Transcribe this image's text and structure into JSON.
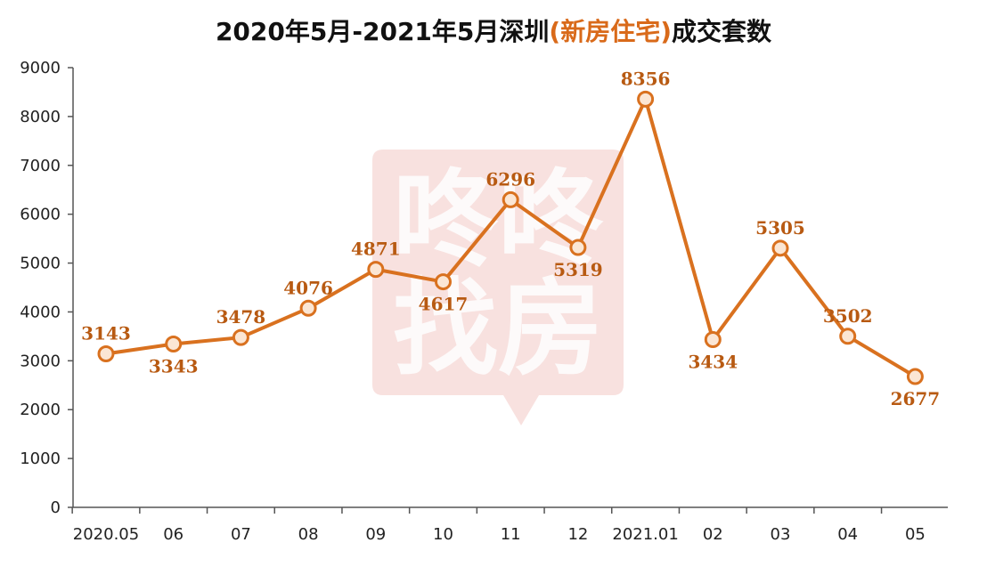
{
  "title": {
    "prefix": "2020年5月-2021年5月深圳",
    "highlight": "(新房住宅)",
    "suffix": "成交套数"
  },
  "watermark": {
    "line1": "咚咚",
    "line2": "找房"
  },
  "colors": {
    "line": "#d9711f",
    "marker_fill": "#fbe6d4",
    "marker_stroke": "#d9711f",
    "label": "#b85a12",
    "highlight": "#d96a1a",
    "watermark": "#f3c9c4"
  },
  "chart_data": {
    "type": "line",
    "title": "2020年5月-2021年5月深圳(新房住宅)成交套数",
    "xlabel": "",
    "ylabel": "",
    "categories": [
      "2020.05",
      "06",
      "07",
      "08",
      "09",
      "10",
      "11",
      "12",
      "2021.01",
      "02",
      "03",
      "04",
      "05"
    ],
    "series": [
      {
        "values": [
          3143,
          3343,
          3478,
          4076,
          4871,
          4617,
          6296,
          5319,
          8356,
          3434,
          5305,
          3502,
          2677
        ],
        "labels": [
          "3143",
          "3343",
          "3478",
          "4076",
          "4871",
          "4617",
          "6296",
          "5319",
          "8356",
          "3434",
          "5305",
          "3502",
          "2677"
        ],
        "label_positions": [
          "above",
          "below",
          "above",
          "above",
          "above",
          "below",
          "above",
          "below",
          "above",
          "below",
          "above",
          "above",
          "below"
        ]
      }
    ],
    "ylim": [
      0,
      9000
    ],
    "yticks": [
      "0",
      "1000",
      "2000",
      "3000",
      "4000",
      "5000",
      "6000",
      "7000",
      "8000",
      "9000"
    ],
    "grid": false,
    "legend": "none"
  }
}
